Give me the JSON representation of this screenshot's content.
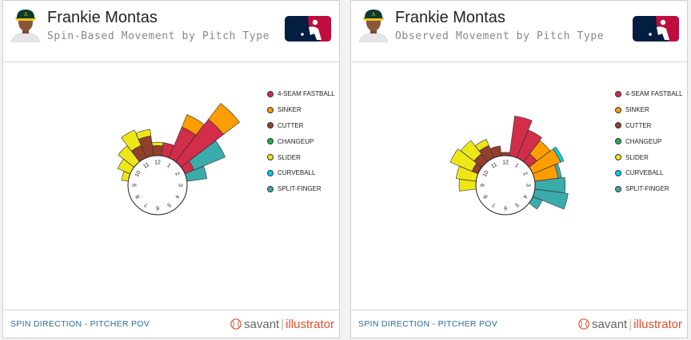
{
  "colors": {
    "4-seam fastball": "#d22d49",
    "sinker": "#fe9d00",
    "cutter": "#933f2c",
    "changeup": "#1db053",
    "slider": "#eee716",
    "curveball": "#00d1ed",
    "split-finger": "#3bacac"
  },
  "panels": [
    {
      "player_name": "Frankie Montas",
      "subtitle": "Spin-Based Movement by Pitch Type",
      "footer": "SPIN DIRECTION - PITCHER POV",
      "brand": {
        "savant": "savant",
        "separator": "|",
        "illustrator": "illustrator"
      },
      "legend": [
        "4-SEAM FASTBALL",
        "SINKER",
        "CUTTER",
        "CHANGEUP",
        "SLIDER",
        "CURVEBALL",
        "SPLIT-FINGER"
      ],
      "clock_labels": [
        "12",
        "1",
        "2",
        "3",
        "4",
        "5",
        "6",
        "7",
        "8",
        "9",
        "10",
        "11"
      ]
    },
    {
      "player_name": "Frankie Montas",
      "subtitle": "Observed Movement by Pitch Type",
      "footer": "SPIN DIRECTION - PITCHER POV",
      "brand": {
        "savant": "savant",
        "separator": "|",
        "illustrator": "illustrator"
      },
      "legend": [
        "4-SEAM FASTBALL",
        "SINKER",
        "CUTTER",
        "CHANGEUP",
        "SLIDER",
        "CURVEBALL",
        "SPLIT-FINGER"
      ],
      "clock_labels": [
        "12",
        "1",
        "2",
        "3",
        "4",
        "5",
        "6",
        "7",
        "8",
        "9",
        "10",
        "11"
      ]
    }
  ],
  "chart_data": [
    {
      "type": "radial-stacked-bar",
      "title": "Spin-Based Movement by Pitch Type",
      "axis": "clock direction (hours)",
      "series": [
        {
          "name": "4-SEAM FASTBALL",
          "bins": [
            [
              0.5,
              0.4
            ],
            [
              1.0,
              1.0
            ],
            [
              1.5,
              1.6
            ],
            [
              2.0,
              0.3
            ]
          ]
        },
        {
          "name": "SINKER",
          "bins": [
            [
              1.0,
              0.4
            ],
            [
              1.5,
              0.6
            ]
          ]
        },
        {
          "name": "CUTTER",
          "bins": [
            [
              11.0,
              0.4
            ],
            [
              11.5,
              0.6
            ],
            [
              12.0,
              0.3
            ]
          ]
        },
        {
          "name": "SLIDER",
          "bins": [
            [
              9.5,
              0.2
            ],
            [
              10.0,
              0.4
            ],
            [
              10.5,
              0.6
            ],
            [
              11.0,
              0.5
            ],
            [
              11.5,
              0.2
            ],
            [
              12.0,
              0.1
            ]
          ]
        },
        {
          "name": "SPLIT-FINGER",
          "bins": [
            [
              2.0,
              1.0
            ],
            [
              2.5,
              0.6
            ]
          ]
        }
      ]
    },
    {
      "type": "radial-stacked-bar",
      "title": "Observed Movement by Pitch Type",
      "axis": "clock direction (hours)",
      "series": [
        {
          "name": "4-SEAM FASTBALL",
          "bins": [
            [
              0.5,
              1.2
            ],
            [
              1.0,
              0.9
            ],
            [
              1.5,
              0.3
            ]
          ]
        },
        {
          "name": "SINKER",
          "bins": [
            [
              1.5,
              0.5
            ],
            [
              2.0,
              0.9
            ],
            [
              2.5,
              0.7
            ]
          ]
        },
        {
          "name": "CUTTER",
          "bins": [
            [
              10.0,
              0.2
            ],
            [
              10.5,
              0.3
            ],
            [
              11.0,
              0.4
            ],
            [
              11.5,
              0.3
            ],
            [
              12.0,
              0.1
            ]
          ]
        },
        {
          "name": "SLIDER",
          "bins": [
            [
              9.0,
              0.5
            ],
            [
              9.5,
              0.6
            ],
            [
              10.0,
              0.7
            ],
            [
              10.5,
              0.5
            ],
            [
              11.0,
              0.2
            ]
          ]
        },
        {
          "name": "CURVEBALL",
          "bins": [
            [
              2.0,
              0.1
            ]
          ]
        },
        {
          "name": "SPLIT-FINGER",
          "bins": [
            [
              2.5,
              0.1
            ],
            [
              3.0,
              0.9
            ],
            [
              3.5,
              1.0
            ],
            [
              4.0,
              0.3
            ]
          ]
        }
      ]
    }
  ]
}
